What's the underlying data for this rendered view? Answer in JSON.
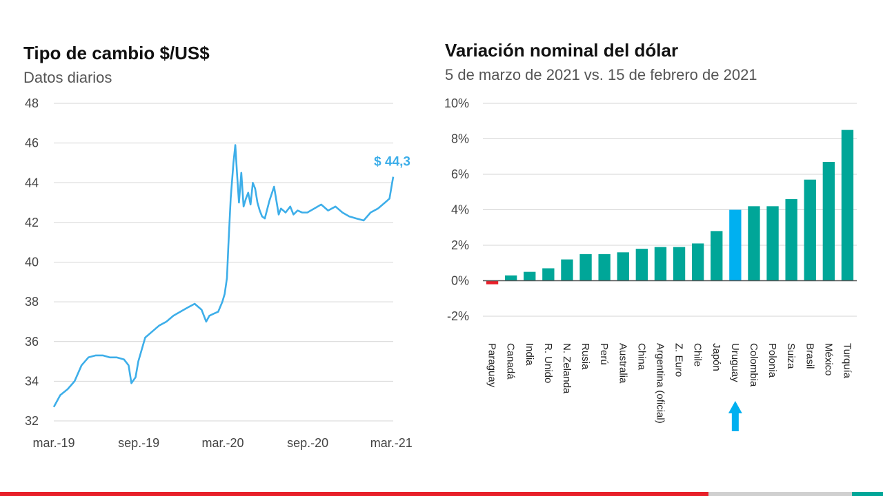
{
  "colors": {
    "line": "#3daee9",
    "bar": "#00a698",
    "highlight": "#00b0f0",
    "negative": "#e8202a",
    "grid": "#d4d4d4"
  },
  "chart_data": [
    {
      "type": "line",
      "title": "Tipo de cambio $/US$",
      "subtitle": "Datos diarios",
      "xlabel": "",
      "ylabel": "",
      "ylim": [
        32,
        48
      ],
      "yticks": [
        "32",
        "34",
        "36",
        "38",
        "40",
        "42",
        "44",
        "46",
        "48"
      ],
      "xticks": [
        "mar.-19",
        "sep.-19",
        "mar.-20",
        "sep.-20",
        "mar.-21"
      ],
      "grid": true,
      "annotation": "$ 44,3",
      "series": [
        {
          "x": [
            "2019-03-01",
            "2019-03-15",
            "2019-03-31",
            "2019-04-15",
            "2019-04-30",
            "2019-05-15",
            "2019-05-31",
            "2019-06-15",
            "2019-06-30",
            "2019-07-15",
            "2019-07-31",
            "2019-08-10",
            "2019-08-16",
            "2019-08-25",
            "2019-08-31",
            "2019-09-15",
            "2019-09-30",
            "2019-10-15",
            "2019-10-31",
            "2019-11-15",
            "2019-11-30",
            "2019-12-15",
            "2019-12-31",
            "2020-01-15",
            "2020-01-25",
            "2020-02-01",
            "2020-02-10",
            "2020-02-20",
            "2020-02-29",
            "2020-03-05",
            "2020-03-10",
            "2020-03-13",
            "2020-03-18",
            "2020-03-24",
            "2020-03-28",
            "2020-04-01",
            "2020-04-05",
            "2020-04-10",
            "2020-04-15",
            "2020-04-20",
            "2020-04-25",
            "2020-04-30",
            "2020-05-05",
            "2020-05-10",
            "2020-05-15",
            "2020-05-20",
            "2020-05-25",
            "2020-05-31",
            "2020-06-10",
            "2020-06-20",
            "2020-06-30",
            "2020-07-05",
            "2020-07-15",
            "2020-07-25",
            "2020-08-01",
            "2020-08-10",
            "2020-08-20",
            "2020-08-31",
            "2020-09-15",
            "2020-09-30",
            "2020-10-15",
            "2020-10-31",
            "2020-11-15",
            "2020-11-30",
            "2020-12-15",
            "2020-12-31",
            "2021-01-15",
            "2021-01-31",
            "2021-02-15",
            "2021-02-25",
            "2021-03-02",
            "2021-03-05"
          ],
          "values": [
            32.7,
            33.3,
            33.6,
            34.0,
            34.8,
            35.2,
            35.3,
            35.3,
            35.2,
            35.2,
            35.1,
            34.8,
            33.9,
            34.2,
            35.0,
            36.2,
            36.5,
            36.8,
            37.0,
            37.3,
            37.5,
            37.7,
            37.9,
            37.6,
            37.0,
            37.3,
            37.4,
            37.5,
            38.0,
            38.4,
            39.2,
            40.8,
            43.2,
            45.0,
            45.9,
            44.4,
            43.0,
            44.5,
            42.8,
            43.2,
            43.5,
            42.9,
            44.0,
            43.7,
            43.0,
            42.6,
            42.3,
            42.2,
            43.1,
            43.8,
            42.4,
            42.7,
            42.5,
            42.8,
            42.4,
            42.6,
            42.5,
            42.5,
            42.7,
            42.9,
            42.6,
            42.8,
            42.5,
            42.3,
            42.2,
            42.1,
            42.5,
            42.7,
            43.0,
            43.2,
            43.9,
            44.3
          ]
        }
      ]
    },
    {
      "type": "bar",
      "title": "Variación nominal del dólar",
      "subtitle": "5 de marzo de 2021 vs. 15 de febrero de 2021",
      "xlabel": "",
      "ylabel": "",
      "ylim": [
        -2,
        10
      ],
      "yticks": [
        "-2%",
        "0%",
        "2%",
        "4%",
        "6%",
        "8%",
        "10%"
      ],
      "grid": true,
      "categories": [
        "Paraguay",
        "Canadá",
        "India",
        "R. Unido",
        "N. Zelanda",
        "Rusia",
        "Perú",
        "Australia",
        "China",
        "Argentina (oficial)",
        "Z. Euro",
        "Chile",
        "Japón",
        "Uruguay",
        "Colombia",
        "Polonia",
        "Suiza",
        "Brasil",
        "México",
        "Turquía"
      ],
      "values": [
        -0.2,
        0.3,
        0.5,
        0.7,
        1.2,
        1.5,
        1.5,
        1.6,
        1.8,
        1.9,
        1.9,
        2.1,
        2.8,
        4.0,
        4.2,
        4.2,
        4.6,
        5.7,
        6.7,
        8.5
      ],
      "highlight": "Uruguay"
    }
  ]
}
